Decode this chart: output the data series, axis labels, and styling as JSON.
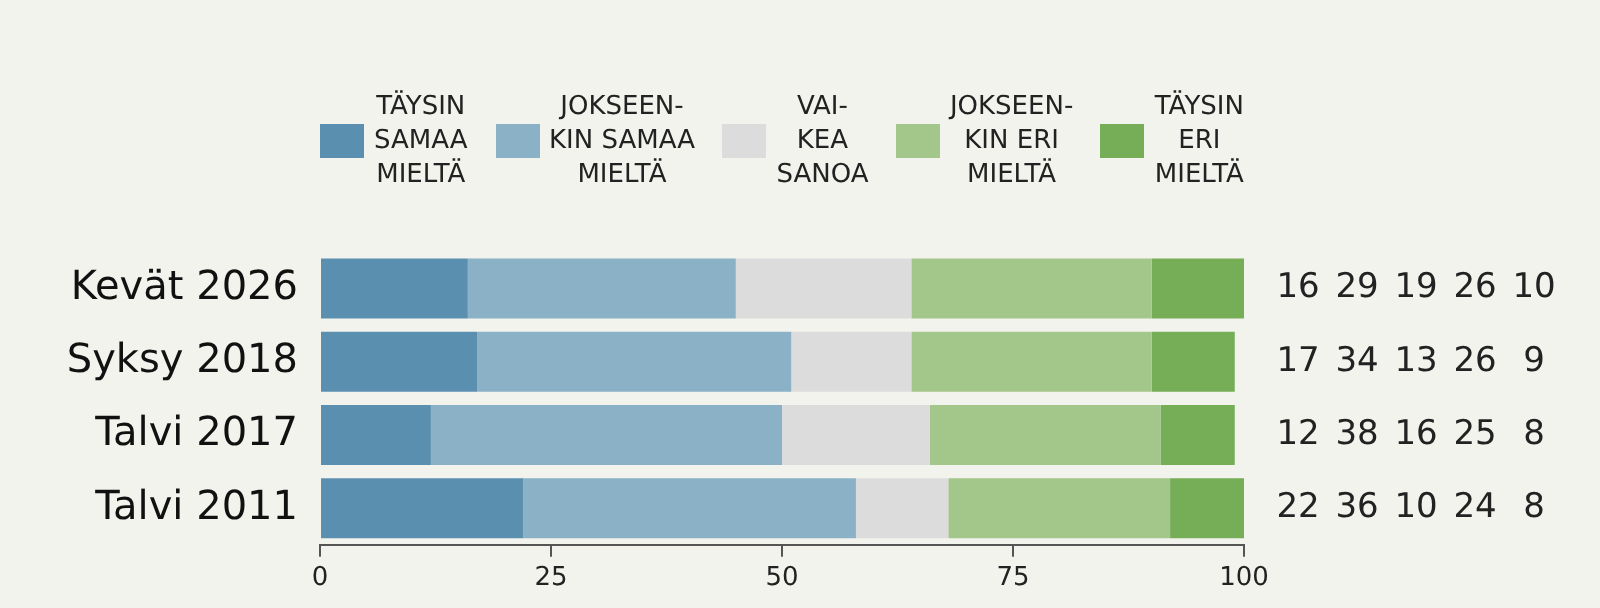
{
  "chart_data": {
    "type": "bar",
    "orientation": "horizontal",
    "stacked": true,
    "categories": [
      "Kevät 2026",
      "Syksy 2018",
      "Talvi 2017",
      "Talvi 2011"
    ],
    "series": [
      {
        "name": "TÄYSIN\nSAMAA\nMIELTÄ",
        "color": "#5b8fb0",
        "values": [
          16,
          17,
          12,
          22
        ]
      },
      {
        "name": "JOKSEEN-\nKIN SAMAA\nMIELTÄ",
        "color": "#8ab1c6",
        "values": [
          29,
          34,
          38,
          36
        ]
      },
      {
        "name": "VAI-\nKEA\nSANOA",
        "color": "#dcdcdc",
        "values": [
          19,
          13,
          16,
          10
        ]
      },
      {
        "name": "JOKSEEN-\nKIN ERI\nMIELTÄ",
        "color": "#a3c68a",
        "values": [
          26,
          26,
          25,
          24
        ]
      },
      {
        "name": "TÄYSIN\nERI\nMIELTÄ",
        "color": "#76ad57",
        "values": [
          10,
          9,
          8,
          8
        ]
      }
    ],
    "xlim": [
      0,
      100
    ],
    "xticks": [
      0,
      25,
      50,
      75,
      100
    ],
    "grid": false,
    "legend": "top",
    "data_labels": true
  }
}
